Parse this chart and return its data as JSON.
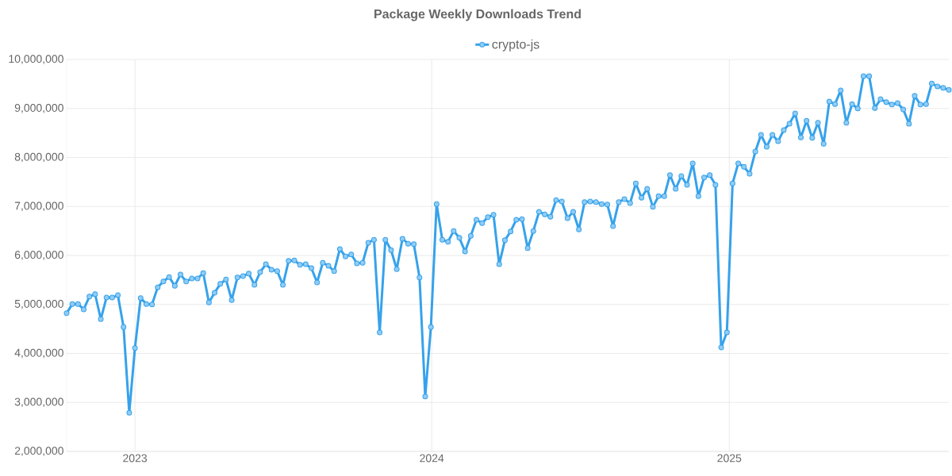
{
  "chart_data": {
    "type": "line",
    "title": "Package Weekly Downloads Trend",
    "x": [
      "2022-10-09",
      "2022-10-16",
      "2022-10-23",
      "2022-10-30",
      "2022-11-06",
      "2022-11-13",
      "2022-11-20",
      "2022-11-27",
      "2022-12-04",
      "2022-12-11",
      "2022-12-18",
      "2022-12-25",
      "2023-01-01",
      "2023-01-08",
      "2023-01-15",
      "2023-01-22",
      "2023-01-29",
      "2023-02-05",
      "2023-02-12",
      "2023-02-19",
      "2023-02-26",
      "2023-03-05",
      "2023-03-12",
      "2023-03-19",
      "2023-03-26",
      "2023-04-02",
      "2023-04-09",
      "2023-04-16",
      "2023-04-23",
      "2023-04-30",
      "2023-05-07",
      "2023-05-14",
      "2023-05-21",
      "2023-05-28",
      "2023-06-04",
      "2023-06-11",
      "2023-06-18",
      "2023-06-25",
      "2023-07-02",
      "2023-07-09",
      "2023-07-16",
      "2023-07-23",
      "2023-07-30",
      "2023-08-06",
      "2023-08-13",
      "2023-08-20",
      "2023-08-27",
      "2023-09-03",
      "2023-09-10",
      "2023-09-17",
      "2023-09-24",
      "2023-10-01",
      "2023-10-08",
      "2023-10-15",
      "2023-10-22",
      "2023-10-29",
      "2023-11-05",
      "2023-11-12",
      "2023-11-19",
      "2023-11-26",
      "2023-12-03",
      "2023-12-10",
      "2023-12-17",
      "2023-12-24",
      "2023-12-31",
      "2024-01-07",
      "2024-01-14",
      "2024-01-21",
      "2024-01-28",
      "2024-02-04",
      "2024-02-11",
      "2024-02-18",
      "2024-02-25",
      "2024-03-03",
      "2024-03-10",
      "2024-03-17",
      "2024-03-24",
      "2024-03-31",
      "2024-04-07",
      "2024-04-14",
      "2024-04-21",
      "2024-04-28",
      "2024-05-05",
      "2024-05-12",
      "2024-05-19",
      "2024-05-26",
      "2024-06-02",
      "2024-06-09",
      "2024-06-16",
      "2024-06-23",
      "2024-06-30",
      "2024-07-07",
      "2024-07-14",
      "2024-07-21",
      "2024-07-28",
      "2024-08-04",
      "2024-08-11",
      "2024-08-18",
      "2024-08-25",
      "2024-09-01",
      "2024-09-08",
      "2024-09-15",
      "2024-09-22",
      "2024-09-29",
      "2024-10-06",
      "2024-10-13",
      "2024-10-20",
      "2024-10-27",
      "2024-11-03",
      "2024-11-10",
      "2024-11-17",
      "2024-11-24",
      "2024-12-01",
      "2024-12-08",
      "2024-12-15",
      "2024-12-22",
      "2024-12-29",
      "2025-01-05",
      "2025-01-12",
      "2025-01-19",
      "2025-01-26",
      "2025-02-02",
      "2025-02-09",
      "2025-02-16",
      "2025-02-23",
      "2025-03-02",
      "2025-03-09",
      "2025-03-16",
      "2025-03-23",
      "2025-03-30",
      "2025-04-06",
      "2025-04-13",
      "2025-04-20",
      "2025-04-27",
      "2025-05-04",
      "2025-05-11",
      "2025-05-18",
      "2025-05-25",
      "2025-06-01",
      "2025-06-08",
      "2025-06-15",
      "2025-06-22",
      "2025-06-29",
      "2025-07-06",
      "2025-07-13",
      "2025-07-20",
      "2025-07-27",
      "2025-08-03",
      "2025-08-10",
      "2025-08-17",
      "2025-08-24",
      "2025-08-31",
      "2025-09-07",
      "2025-09-14",
      "2025-09-21",
      "2025-09-28"
    ],
    "series": [
      {
        "name": "crypto-js",
        "color": "#36a2eb",
        "values": [
          4820000,
          5010000,
          5010000,
          4900000,
          5160000,
          5210000,
          4700000,
          5140000,
          5140000,
          5190000,
          4540000,
          2790000,
          4110000,
          5130000,
          5010000,
          5000000,
          5350000,
          5470000,
          5560000,
          5380000,
          5610000,
          5470000,
          5530000,
          5530000,
          5640000,
          5040000,
          5240000,
          5420000,
          5510000,
          5090000,
          5550000,
          5580000,
          5630000,
          5400000,
          5660000,
          5820000,
          5710000,
          5680000,
          5400000,
          5890000,
          5900000,
          5810000,
          5820000,
          5740000,
          5450000,
          5850000,
          5790000,
          5680000,
          6130000,
          5980000,
          6020000,
          5840000,
          5850000,
          6260000,
          6320000,
          4430000,
          6320000,
          6110000,
          5720000,
          6340000,
          6240000,
          6230000,
          5550000,
          3120000,
          4540000,
          7050000,
          6320000,
          6280000,
          6500000,
          6360000,
          6080000,
          6400000,
          6730000,
          6660000,
          6780000,
          6830000,
          5820000,
          6310000,
          6490000,
          6730000,
          6740000,
          6150000,
          6500000,
          6890000,
          6840000,
          6790000,
          7130000,
          7100000,
          6760000,
          6890000,
          6530000,
          7090000,
          7100000,
          7090000,
          7050000,
          7040000,
          6600000,
          7090000,
          7150000,
          7070000,
          7470000,
          7180000,
          7360000,
          6990000,
          7210000,
          7210000,
          7640000,
          7360000,
          7620000,
          7440000,
          7880000,
          7210000,
          7590000,
          7640000,
          7440000,
          4120000,
          4430000,
          7470000,
          7880000,
          7810000,
          7670000,
          8120000,
          8460000,
          8220000,
          8460000,
          8330000,
          8560000,
          8690000,
          8900000,
          8410000,
          8750000,
          8400000,
          8710000,
          8280000,
          9140000,
          9090000,
          9370000,
          8710000,
          9090000,
          9000000,
          9660000,
          9660000,
          9010000,
          9190000,
          9130000,
          9080000,
          9110000,
          8980000,
          8690000,
          9260000,
          9080000,
          9090000,
          9510000,
          9450000,
          9420000,
          9380000
        ]
      }
    ],
    "xlim": [
      "2022-10-09",
      "2025-09-28"
    ],
    "xticks": [
      {
        "value": "2023-01-01",
        "label": "2023"
      },
      {
        "value": "2024-01-01",
        "label": "2024"
      },
      {
        "value": "2025-01-01",
        "label": "2025"
      }
    ],
    "ylim": [
      2000000,
      10000000
    ],
    "yticks": [
      {
        "value": 2000000,
        "label": "2,000,000"
      },
      {
        "value": 3000000,
        "label": "3,000,000"
      },
      {
        "value": 4000000,
        "label": "4,000,000"
      },
      {
        "value": 5000000,
        "label": "5,000,000"
      },
      {
        "value": 6000000,
        "label": "6,000,000"
      },
      {
        "value": 7000000,
        "label": "7,000,000"
      },
      {
        "value": 8000000,
        "label": "8,000,000"
      },
      {
        "value": 9000000,
        "label": "9,000,000"
      },
      {
        "value": 10000000,
        "label": "10,000,000"
      }
    ],
    "grid": true,
    "legend": "top",
    "marker": "circle",
    "line_style": "solid"
  }
}
